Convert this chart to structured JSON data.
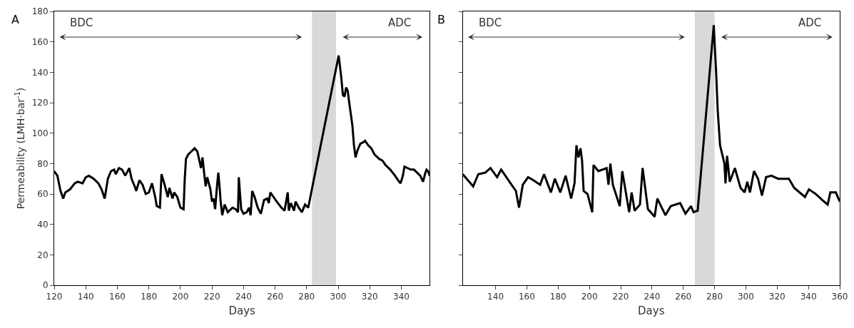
{
  "chart_data": [
    {
      "type": "line",
      "title": "A",
      "xlabel": "Days",
      "ylabel": "Permeability (LMH·bar$^{-1}$)",
      "annotations": [
        "BDC",
        "ADC"
      ],
      "xlim": [
        120,
        358
      ],
      "xticks": [
        120,
        140,
        160,
        180,
        200,
        220,
        240,
        260,
        280,
        300,
        320,
        340
      ],
      "ylim": [
        0,
        180
      ],
      "yticks": [
        0,
        20,
        40,
        60,
        80,
        100,
        120,
        140,
        160,
        180
      ],
      "grid": false,
      "marker": "none",
      "line_style": "solid",
      "bands": [
        {
          "axis": "x",
          "from": 283.4,
          "to": 298.6,
          "color": "#d9d9d9"
        }
      ],
      "series": [
        {
          "color": "#000000",
          "x": [
            120,
            122,
            124,
            125.7,
            127,
            130,
            133,
            135,
            138,
            140,
            142,
            145,
            148,
            150,
            152,
            154,
            156,
            158,
            159,
            161,
            163,
            165,
            167.6,
            169,
            171,
            172,
            174,
            176,
            178,
            180,
            182,
            184,
            185,
            187,
            188,
            190,
            192,
            193,
            195,
            196,
            198,
            200,
            202,
            202.7,
            203.5,
            205,
            207,
            209,
            210.7,
            212,
            213,
            214,
            215,
            216,
            217,
            219,
            220,
            221,
            222,
            223,
            224,
            224.7,
            225.5,
            226.5,
            228,
            230,
            233,
            235,
            236.5,
            237,
            238.5,
            240,
            242,
            243.5,
            244.5,
            245.5,
            247,
            249,
            251,
            253,
            255,
            256,
            257,
            259,
            261,
            264,
            266,
            268,
            268.7,
            270,
            272,
            273,
            275,
            277,
            279,
            281,
            300.3,
            301,
            302,
            303,
            304,
            305,
            306,
            307,
            309,
            310,
            311,
            312,
            314,
            316,
            317,
            319,
            321,
            323,
            326,
            328,
            330,
            333,
            336,
            338,
            339.5,
            341,
            342,
            344,
            346,
            348,
            350,
            352,
            353.8,
            355,
            356,
            357,
            358
          ],
          "values": [
            75,
            72,
            62,
            57,
            61,
            63,
            67,
            68,
            67,
            71,
            72,
            70,
            67,
            63,
            57,
            70,
            75,
            76,
            73,
            77,
            76,
            72,
            77,
            70,
            65,
            62,
            69,
            66,
            60,
            61,
            67,
            58,
            52,
            51,
            73,
            66,
            58,
            64,
            57,
            61,
            58,
            51,
            50,
            69,
            83,
            86,
            88,
            90,
            88,
            82,
            77,
            84,
            74,
            65,
            71,
            63,
            55,
            57,
            50,
            63,
            74,
            66,
            55,
            46,
            53,
            48,
            51,
            50,
            48,
            71,
            50,
            47,
            48,
            51,
            46,
            62,
            58,
            51,
            47,
            56,
            57,
            54,
            61,
            58,
            55,
            51,
            49,
            61,
            49,
            54,
            49,
            55,
            51,
            48,
            53,
            51,
            151,
            145,
            136,
            125,
            124,
            130,
            128,
            120,
            105,
            92,
            84,
            88,
            93,
            94,
            95,
            92,
            90,
            86,
            83,
            82,
            79,
            76,
            72,
            69,
            67,
            72,
            78,
            77,
            76,
            76,
            74,
            72,
            68,
            73,
            76,
            75,
            72
          ]
        }
      ]
    },
    {
      "type": "line",
      "title": "B",
      "xlabel": "Days",
      "annotations": [
        "BDC",
        "ADC"
      ],
      "xlim": [
        119,
        360
      ],
      "xticks": [
        140,
        160,
        180,
        200,
        220,
        240,
        260,
        280,
        300,
        320,
        340,
        360
      ],
      "ylim": [
        0,
        180
      ],
      "yticks": [
        0,
        20,
        40,
        60,
        80,
        100,
        120,
        140,
        160,
        180
      ],
      "tick_labels": "x",
      "grid": false,
      "marker": "none",
      "line_style": "solid",
      "bands": [
        {
          "axis": "x",
          "from": 267.4,
          "to": 280,
          "color": "#d9d9d9"
        }
      ],
      "series": [
        {
          "color": "#000000",
          "x": [
            119,
            125.7,
            129,
            133.4,
            136.8,
            141,
            143.6,
            149.6,
            153,
            155,
            157.4,
            160.8,
            164.2,
            168.5,
            171,
            175.4,
            177.9,
            181.4,
            184.8,
            188.3,
            190.5,
            191.7,
            193,
            194.3,
            195.3,
            196.3,
            198.8,
            201.8,
            202.6,
            205.7,
            211,
            212.2,
            213.4,
            215,
            219.4,
            221,
            225.4,
            227,
            228.9,
            232.3,
            234,
            237.4,
            241.7,
            243.4,
            248.6,
            252,
            258,
            261.4,
            264.9,
            266.6,
            269.2,
            279.5,
            280,
            281,
            282,
            283.5,
            286.3,
            287,
            288,
            289.7,
            293,
            296.6,
            299.2,
            300.9,
            302.6,
            305.2,
            307.8,
            310.3,
            312.9,
            316.3,
            320.6,
            327.5,
            330.9,
            337.8,
            340.3,
            344.6,
            348.9,
            352.3,
            354,
            357.5,
            360
          ],
          "values": [
            73,
            65,
            73,
            74,
            77,
            71,
            76,
            67,
            62,
            51,
            66,
            71,
            69,
            66,
            73,
            61,
            70,
            61,
            72,
            57,
            67,
            92,
            84,
            90,
            82,
            62,
            60,
            48,
            79,
            75,
            77,
            66,
            80,
            66,
            52,
            75,
            48,
            61,
            49,
            53,
            77,
            50,
            45,
            57,
            46,
            52,
            54,
            47,
            52,
            48,
            49,
            171,
            160,
            140,
            115,
            92,
            80,
            67,
            85,
            68,
            77,
            64,
            61,
            68,
            61,
            75,
            70,
            59,
            71,
            72,
            70,
            70,
            64,
            58,
            63,
            60,
            56,
            53,
            61,
            61,
            55
          ]
        }
      ]
    }
  ]
}
